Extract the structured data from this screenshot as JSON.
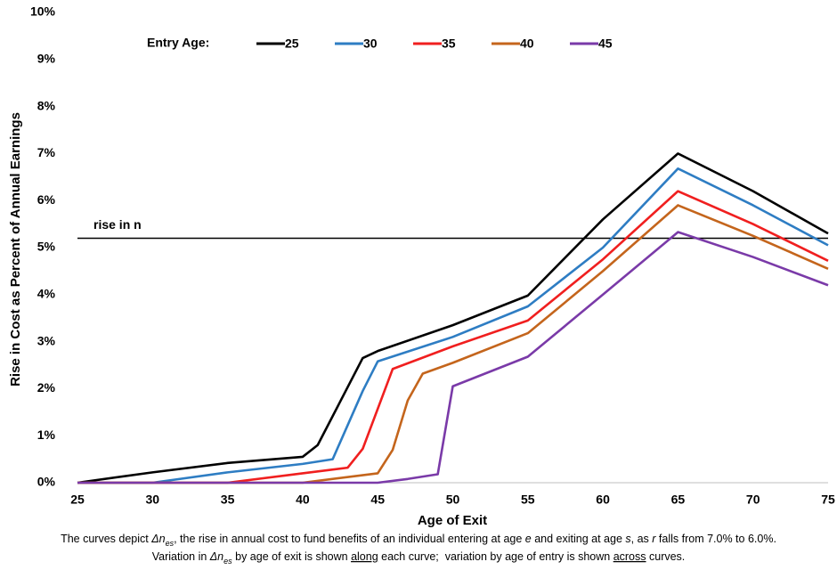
{
  "chart_data": {
    "type": "line",
    "y_axis_title": "Rise in Cost as Percent of Annual Earnings",
    "x_axis_title": "Age of Exit",
    "legend_title": "Entry Age:",
    "legend_position": "top",
    "grid": false,
    "xlim": [
      25,
      75
    ],
    "xticks": [
      25,
      30,
      35,
      40,
      45,
      50,
      55,
      60,
      65,
      70,
      75
    ],
    "ylim": [
      0,
      10
    ],
    "yticks": [
      {
        "value": 0,
        "label": "0%"
      },
      {
        "value": 1,
        "label": "1%"
      },
      {
        "value": 2,
        "label": "2%"
      },
      {
        "value": 3,
        "label": "3%"
      },
      {
        "value": 4,
        "label": "4%"
      },
      {
        "value": 5,
        "label": "5%"
      },
      {
        "value": 6,
        "label": "6%"
      },
      {
        "value": 7,
        "label": "7%"
      },
      {
        "value": 8,
        "label": "8%"
      },
      {
        "value": 9,
        "label": "9%"
      },
      {
        "value": 10,
        "label": "10%"
      }
    ],
    "reference_line": {
      "value": 5.2,
      "label": "rise in n",
      "color": "#000000"
    },
    "series": [
      {
        "name": "25",
        "color": "#000000",
        "x": [
          25,
          30,
          35,
          40,
          41,
          44,
          45,
          50,
          55,
          60,
          65,
          70,
          75
        ],
        "values": [
          0,
          0.22,
          0.42,
          0.55,
          0.8,
          2.65,
          2.8,
          3.35,
          3.98,
          5.6,
          7.0,
          6.2,
          5.3
        ]
      },
      {
        "name": "30",
        "color": "#2e7dc3",
        "x": [
          25,
          30,
          35,
          40,
          42,
          44,
          45,
          50,
          55,
          60,
          65,
          70,
          75
        ],
        "values": [
          0,
          0,
          0.22,
          0.4,
          0.5,
          1.95,
          2.58,
          3.1,
          3.75,
          5.0,
          6.68,
          5.9,
          5.05
        ]
      },
      {
        "name": "35",
        "color": "#f01f1f",
        "x": [
          25,
          35,
          40,
          43,
          44,
          46,
          50,
          55,
          60,
          65,
          70,
          75
        ],
        "values": [
          0,
          0,
          0.2,
          0.32,
          0.72,
          2.42,
          2.9,
          3.45,
          4.75,
          6.2,
          5.5,
          4.72
        ]
      },
      {
        "name": "40",
        "color": "#c4651c",
        "x": [
          25,
          40,
          45,
          46,
          47,
          48,
          50,
          55,
          60,
          65,
          70,
          75
        ],
        "values": [
          0,
          0,
          0.2,
          0.7,
          1.75,
          2.32,
          2.55,
          3.18,
          4.5,
          5.9,
          5.25,
          4.55
        ]
      },
      {
        "name": "45",
        "color": "#7a3aa8",
        "x": [
          25,
          45,
          47,
          49,
          50,
          55,
          60,
          65,
          70,
          75
        ],
        "values": [
          0,
          0,
          0.08,
          0.18,
          2.05,
          2.68,
          4.0,
          5.33,
          4.8,
          4.2
        ]
      }
    ],
    "caption": [
      [
        {
          "text": "The curves depict "
        },
        {
          "text": "Δn",
          "italic": true
        },
        {
          "text": "es",
          "italic": true,
          "sub": true
        },
        {
          "text": ", the rise in annual cost to fund benefits of an individual entering at age "
        },
        {
          "text": "e",
          "italic": true
        },
        {
          "text": " and exiting at age "
        },
        {
          "text": "s",
          "italic": true
        },
        {
          "text": ", as "
        },
        {
          "text": "r",
          "italic": true
        },
        {
          "text": " falls from 7.0% to 6.0%."
        }
      ],
      [
        {
          "text": "Variation in "
        },
        {
          "text": "Δn",
          "italic": true
        },
        {
          "text": "es",
          "italic": true,
          "sub": true
        },
        {
          "text": " by age of exit is shown "
        },
        {
          "text": "along",
          "underline": true
        },
        {
          "text": " each curve;  variation by age of entry is shown "
        },
        {
          "text": "across",
          "underline": true
        },
        {
          "text": " curves."
        }
      ]
    ]
  }
}
